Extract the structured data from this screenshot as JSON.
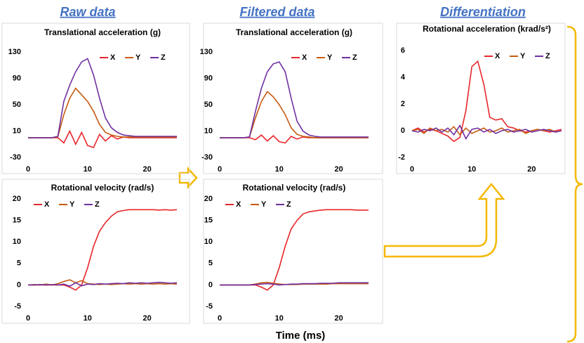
{
  "headers": [
    "Raw data",
    "Filtered data",
    "Differentiation"
  ],
  "xlabel": "Time (ms)",
  "chart_data": [
    {
      "type": "line",
      "title": "Translational acceleration (g)",
      "legend": "upper right",
      "x": [
        0,
        1,
        2,
        3,
        4,
        5,
        6,
        7,
        8,
        9,
        10,
        11,
        12,
        13,
        14,
        15,
        16,
        17,
        18,
        19,
        20,
        21,
        22,
        23,
        24,
        25
      ],
      "xlim": [
        0,
        25
      ],
      "xticks": [
        0,
        10,
        20
      ],
      "ylim": [
        -30,
        130
      ],
      "yticks": [
        -30,
        10,
        50,
        90,
        130
      ],
      "series": [
        {
          "name": "X",
          "color": "#e8262a",
          "values": [
            0,
            0,
            0,
            0,
            0,
            0,
            -8,
            10,
            -10,
            8,
            -12,
            -15,
            5,
            -5,
            3,
            -2,
            1,
            0,
            0,
            0,
            0,
            0,
            0,
            0,
            0,
            0
          ]
        },
        {
          "name": "Y",
          "color": "#c55a11",
          "values": [
            0,
            0,
            0,
            0,
            0,
            1,
            35,
            60,
            75,
            65,
            55,
            40,
            20,
            8,
            4,
            2,
            1,
            1,
            1,
            1,
            1,
            1,
            1,
            1,
            1,
            1
          ]
        },
        {
          "name": "Z",
          "color": "#7030a0",
          "values": [
            0,
            0,
            0,
            0,
            0,
            2,
            55,
            80,
            100,
            115,
            120,
            95,
            60,
            30,
            15,
            8,
            4,
            3,
            2,
            2,
            2,
            2,
            2,
            2,
            2,
            2
          ]
        }
      ]
    },
    {
      "type": "line",
      "title": "Translational acceleration (g)",
      "legend": "upper right",
      "x": [
        0,
        1,
        2,
        3,
        4,
        5,
        6,
        7,
        8,
        9,
        10,
        11,
        12,
        13,
        14,
        15,
        16,
        17,
        18,
        19,
        20,
        21,
        22,
        23,
        24,
        25
      ],
      "xlim": [
        0,
        25
      ],
      "xticks": [
        0,
        10,
        20
      ],
      "ylim": [
        -30,
        130
      ],
      "yticks": [
        -30,
        10,
        50,
        90,
        130
      ],
      "series": [
        {
          "name": "X",
          "color": "#e8262a",
          "values": [
            0,
            0,
            0,
            0,
            0,
            0,
            -3,
            4,
            -5,
            3,
            -6,
            -8,
            2,
            -2,
            1,
            0,
            0,
            0,
            0,
            0,
            0,
            0,
            0,
            0,
            0,
            0
          ]
        },
        {
          "name": "Y",
          "color": "#c55a11",
          "values": [
            0,
            0,
            0,
            0,
            0,
            1,
            30,
            55,
            70,
            62,
            50,
            35,
            15,
            5,
            2,
            1,
            0,
            0,
            0,
            0,
            0,
            0,
            0,
            0,
            0,
            0
          ]
        },
        {
          "name": "Z",
          "color": "#7030a0",
          "values": [
            0,
            0,
            0,
            0,
            0,
            1,
            40,
            75,
            100,
            112,
            115,
            100,
            60,
            25,
            10,
            4,
            2,
            1,
            1,
            1,
            1,
            1,
            1,
            1,
            1,
            1
          ]
        }
      ]
    },
    {
      "type": "line",
      "title": "Rotational acceleration (krad/s²)",
      "legend": "upper right",
      "x": [
        0,
        1,
        2,
        3,
        4,
        5,
        6,
        7,
        8,
        9,
        10,
        11,
        12,
        13,
        14,
        15,
        16,
        17,
        18,
        19,
        20,
        21,
        22,
        23,
        24,
        25
      ],
      "xlim": [
        0,
        25
      ],
      "xticks": [
        0,
        10,
        20
      ],
      "ylim": [
        -2,
        6
      ],
      "yticks": [
        -2,
        0,
        2,
        4,
        6
      ],
      "series": [
        {
          "name": "X",
          "color": "#e8262a",
          "values": [
            0,
            0.2,
            -0.1,
            0.1,
            0,
            -0.2,
            -0.4,
            -0.8,
            -0.5,
            1.5,
            4.8,
            5.2,
            3.5,
            1,
            0.8,
            0.9,
            0.3,
            0.2,
            0,
            -0.1,
            0,
            0.1,
            0,
            -0.1,
            0,
            0.1
          ]
        },
        {
          "name": "Y",
          "color": "#c55a11",
          "values": [
            0,
            0.1,
            -0.2,
            0.2,
            0,
            0.1,
            -0.1,
            0.3,
            -0.3,
            0.2,
            -0.2,
            0,
            0.2,
            -0.1,
            0,
            0.2,
            -0.1,
            0,
            0.1,
            -0.2,
            0,
            0.1,
            0,
            0.1,
            -0.1,
            0
          ]
        },
        {
          "name": "Z",
          "color": "#7030a0",
          "values": [
            0,
            -0.1,
            0.1,
            0,
            0.2,
            -0.1,
            0.2,
            -0.3,
            0.4,
            -0.6,
            0.1,
            0.2,
            -0.1,
            0.1,
            -0.2,
            0,
            0.1,
            -0.1,
            0,
            0.1,
            -0.1,
            0,
            0.1,
            0,
            -0.1,
            0
          ]
        }
      ]
    },
    {
      "type": "line",
      "title": "Rotational velocity (rad/s)",
      "legend": "upper left",
      "x": [
        0,
        1,
        2,
        3,
        4,
        5,
        6,
        7,
        8,
        9,
        10,
        11,
        12,
        13,
        14,
        15,
        16,
        17,
        18,
        19,
        20,
        21,
        22,
        23,
        24,
        25
      ],
      "xlim": [
        0,
        25
      ],
      "xticks": [
        0,
        10,
        20
      ],
      "ylim": [
        -5,
        20
      ],
      "yticks": [
        -5,
        0,
        5,
        10,
        15,
        20
      ],
      "series": [
        {
          "name": "X",
          "color": "#e8262a",
          "values": [
            0,
            0,
            0,
            0,
            0,
            0,
            0,
            -0.5,
            -1.2,
            0,
            4,
            9,
            12.5,
            14.5,
            16,
            17,
            17.3,
            17.5,
            17.5,
            17.5,
            17.5,
            17.5,
            17.4,
            17.5,
            17.4,
            17.5
          ]
        },
        {
          "name": "Y",
          "color": "#c55a11",
          "values": [
            0,
            0.1,
            0,
            0.2,
            0,
            0.3,
            0.8,
            1.2,
            0.5,
            1,
            0.3,
            0.2,
            0.1,
            0.2,
            0.1,
            0.2,
            0.3,
            0.2,
            0.3,
            0.2,
            0.3,
            0.2,
            0.3,
            0.2,
            0.3,
            0.2
          ]
        },
        {
          "name": "Z",
          "color": "#7030a0",
          "values": [
            0,
            0,
            0.1,
            0,
            0.1,
            0,
            0.2,
            -0.3,
            0.5,
            -0.2,
            0.2,
            0.1,
            0.3,
            0.2,
            0.3,
            0.4,
            0.3,
            0.5,
            0.4,
            0.5,
            0.4,
            0.5,
            0.6,
            0.5,
            0.4,
            0.5
          ]
        }
      ]
    },
    {
      "type": "line",
      "title": "Rotational velocity (rad/s)",
      "legend": "upper left",
      "x": [
        0,
        1,
        2,
        3,
        4,
        5,
        6,
        7,
        8,
        9,
        10,
        11,
        12,
        13,
        14,
        15,
        16,
        17,
        18,
        19,
        20,
        21,
        22,
        23,
        24,
        25
      ],
      "xlim": [
        0,
        25
      ],
      "xticks": [
        0,
        10,
        20
      ],
      "ylim": [
        -5,
        20
      ],
      "yticks": [
        -5,
        0,
        5,
        10,
        15,
        20
      ],
      "series": [
        {
          "name": "X",
          "color": "#e8262a",
          "values": [
            0,
            0,
            0,
            0,
            0,
            0,
            0,
            -0.5,
            -1.2,
            0,
            4,
            9,
            13,
            15,
            16.5,
            17,
            17.2,
            17.4,
            17.5,
            17.5,
            17.5,
            17.5,
            17.5,
            17.4,
            17.4,
            17.4
          ]
        },
        {
          "name": "Y",
          "color": "#c55a11",
          "values": [
            0,
            0,
            0,
            0,
            0,
            0,
            0.2,
            0.5,
            0.6,
            0.4,
            0.2,
            0.1,
            0.1,
            0.1,
            0.2,
            0.2,
            0.2,
            0.2,
            0.2,
            0.3,
            0.3,
            0.3,
            0.3,
            0.3,
            0.3,
            0.3
          ]
        },
        {
          "name": "Z",
          "color": "#7030a0",
          "values": [
            0,
            0,
            0,
            0,
            0,
            0,
            0.1,
            0.2,
            0.3,
            0.2,
            0,
            0.1,
            0.2,
            0.2,
            0.3,
            0.3,
            0.3,
            0.4,
            0.4,
            0.4,
            0.5,
            0.5,
            0.5,
            0.5,
            0.5,
            0.5
          ]
        }
      ]
    }
  ]
}
